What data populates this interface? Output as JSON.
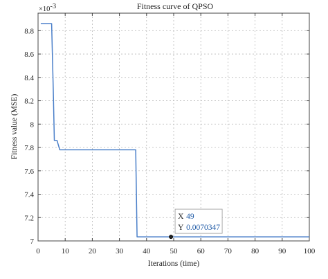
{
  "chart_data": {
    "type": "line",
    "title": "Fitness curve of QPSO",
    "xlabel": "Iterations (time)",
    "ylabel": "Fitness value (MSE)",
    "y_exponent_label": "×10",
    "y_exponent_power": "-3",
    "xlim": [
      0,
      100
    ],
    "ylim": [
      7.0,
      8.95
    ],
    "x_ticks": [
      0,
      10,
      20,
      30,
      40,
      50,
      60,
      70,
      80,
      90,
      100
    ],
    "x_tick_labels": [
      "0",
      "10",
      "20",
      "30",
      "40",
      "50",
      "60",
      "70",
      "80",
      "90",
      "100"
    ],
    "y_ticks": [
      7.0,
      7.2,
      7.4,
      7.6,
      7.8,
      8.0,
      8.2,
      8.4,
      8.6,
      8.8
    ],
    "y_tick_labels": [
      "7",
      "7.2",
      "7.4",
      "7.6",
      "7.8",
      "8",
      "8.2",
      "8.4",
      "8.6",
      "8.8"
    ],
    "grid": true,
    "series": [
      {
        "color": "#4a7fc9",
        "x": [
          1,
          5,
          5.6,
          6,
          7,
          8,
          36,
          36.5,
          37,
          100
        ],
        "y": [
          8.86,
          8.86,
          8.3,
          7.86,
          7.86,
          7.78,
          7.78,
          7.035,
          7.035,
          7.035
        ]
      }
    ],
    "datatip": {
      "x_key": "X",
      "x_value": "49",
      "y_key": "Y",
      "y_value": "0.0070347",
      "point_x": 49,
      "point_y": 7.035
    }
  }
}
